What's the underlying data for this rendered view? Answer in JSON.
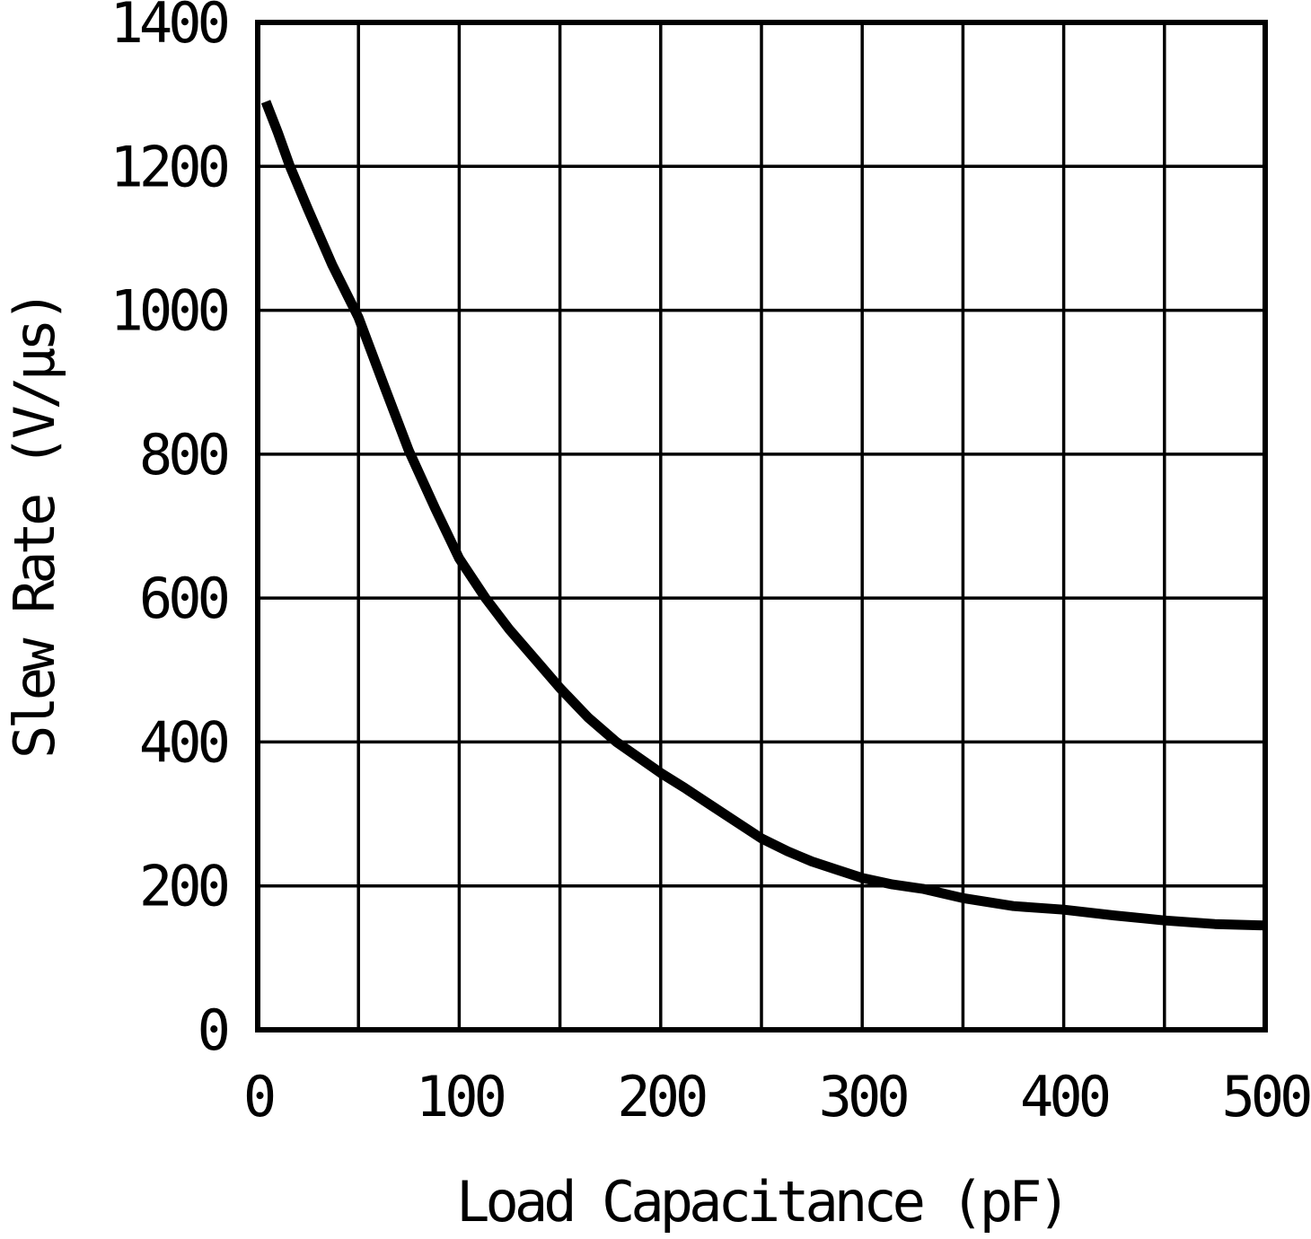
{
  "page": {
    "background": "#ffffff"
  },
  "chart_data": {
    "type": "line",
    "title": "",
    "xlabel": "Load Capacitance (pF)",
    "ylabel": "Slew Rate (V/µs)",
    "xlim": [
      0,
      500
    ],
    "ylim": [
      0,
      1400
    ],
    "x_ticks": [
      0,
      100,
      200,
      300,
      400,
      500
    ],
    "y_ticks": [
      0,
      200,
      400,
      600,
      800,
      1000,
      1200,
      1400
    ],
    "x_grid_step": 50,
    "y_grid_step": 200,
    "grid": true,
    "legend": false,
    "color": "#000000",
    "background": "#ffffff",
    "series": [
      {
        "name": "Slew Rate",
        "x": [
          4,
          10,
          16,
          25,
          37,
          50,
          63,
          75,
          88,
          100,
          113,
          125,
          138,
          150,
          164,
          178,
          200,
          212,
          225,
          238,
          250,
          263,
          275,
          288,
          300,
          315,
          330,
          350,
          375,
          400,
          425,
          450,
          475,
          500
        ],
        "y": [
          1290,
          1247,
          1200,
          1140,
          1063,
          990,
          893,
          805,
          725,
          655,
          600,
          556,
          514,
          475,
          434,
          400,
          357,
          336,
          312,
          288,
          266,
          248,
          234,
          222,
          211,
          202,
          196,
          183,
          172,
          167,
          159,
          152,
          147,
          145
        ]
      }
    ]
  }
}
